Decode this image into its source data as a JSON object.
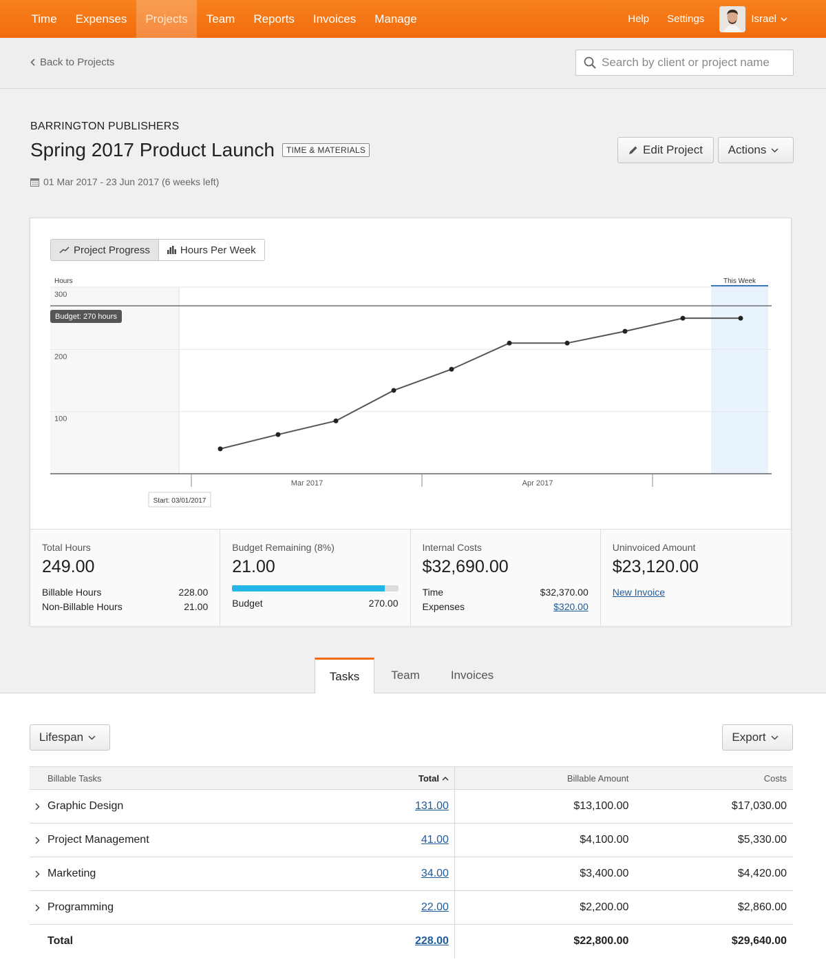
{
  "nav": {
    "items": [
      {
        "label": "Time",
        "active": false
      },
      {
        "label": "Expenses",
        "active": false
      },
      {
        "label": "Projects",
        "active": true
      },
      {
        "label": "Team",
        "active": false
      },
      {
        "label": "Reports",
        "active": false
      },
      {
        "label": "Invoices",
        "active": false
      },
      {
        "label": "Manage",
        "active": false
      }
    ],
    "help": "Help",
    "settings": "Settings",
    "user_name": "Israel",
    "brand_color": "#f26b0c"
  },
  "subheader": {
    "back_label": "Back to Projects",
    "search_placeholder": "Search by client or project name"
  },
  "project": {
    "client": "BARRINGTON PUBLISHERS",
    "title": "Spring 2017 Product Launch",
    "badge": "TIME & MATERIALS",
    "dates": "01 Mar 2017 - 23 Jun 2017 (6 weeks left)",
    "edit_label": "Edit Project",
    "actions_label": "Actions"
  },
  "chart_toggle": {
    "progress_label": "Project Progress",
    "hours_label": "Hours Per Week"
  },
  "chart_data": {
    "type": "line",
    "ylabel": "Hours",
    "ylim": [
      0,
      300
    ],
    "yticks": [
      100,
      200,
      300
    ],
    "budget": 270,
    "budget_label": "Budget: 270 hours",
    "this_week_label": "This Week",
    "start_label": "Start: 03/01/2017",
    "month_labels": [
      "Mar 2017",
      "Apr 2017"
    ],
    "series": [
      {
        "values": [
          40,
          63,
          85,
          134,
          168,
          210,
          210,
          229,
          250,
          250
        ]
      }
    ]
  },
  "stats": {
    "total_hours": {
      "label": "Total Hours",
      "value": "249.00",
      "billable_label": "Billable Hours",
      "billable": "228.00",
      "nonbillable_label": "Non-Billable Hours",
      "nonbillable": "21.00"
    },
    "budget": {
      "label": "Budget Remaining (8%)",
      "value": "21.00",
      "budget_label": "Budget",
      "budget": "270.00",
      "used_fraction": 0.92
    },
    "internal": {
      "label": "Internal Costs",
      "value": "$32,690.00",
      "time_label": "Time",
      "time": "$32,370.00",
      "expenses_label": "Expenses",
      "expenses": "$320.00"
    },
    "uninvoiced": {
      "label": "Uninvoiced Amount",
      "value": "$23,120.00",
      "new_invoice": "New Invoice"
    }
  },
  "tabs": [
    "Tasks",
    "Team",
    "Invoices"
  ],
  "lower": {
    "lifespan_label": "Lifespan",
    "export_label": "Export"
  },
  "table": {
    "headers": [
      "Billable Tasks",
      "Total",
      "Billable Amount",
      "Costs"
    ],
    "rows": [
      {
        "name": "Graphic Design",
        "total": "131.00",
        "billable": "$13,100.00",
        "costs": "$17,030.00"
      },
      {
        "name": "Project Management",
        "total": "41.00",
        "billable": "$4,100.00",
        "costs": "$5,330.00"
      },
      {
        "name": "Marketing",
        "total": "34.00",
        "billable": "$3,400.00",
        "costs": "$4,420.00"
      },
      {
        "name": "Programming",
        "total": "22.00",
        "billable": "$2,200.00",
        "costs": "$2,860.00"
      }
    ],
    "total": {
      "name": "Total",
      "total": "228.00",
      "billable": "$22,800.00",
      "costs": "$29,640.00"
    }
  }
}
